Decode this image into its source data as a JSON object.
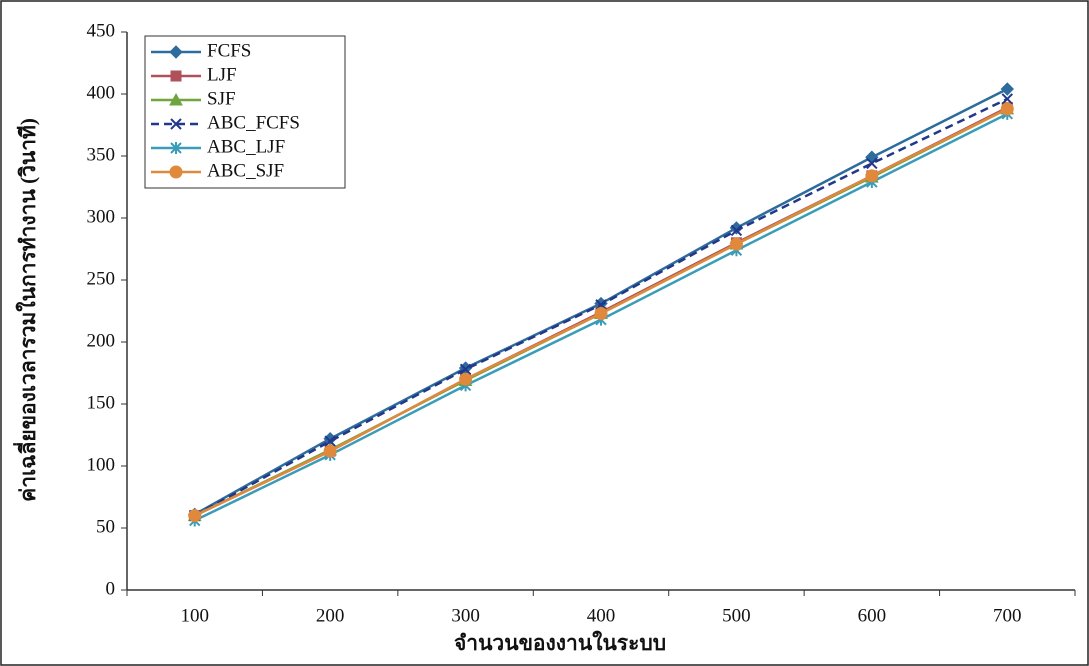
{
  "chart_data": {
    "type": "line",
    "x_label": "จำนวนของงานในระบบ",
    "y_label": "ค่าเฉลี่ยของเวลารวมในการทำงาน (วินาที)",
    "categories": [
      100,
      200,
      300,
      400,
      500,
      600,
      700
    ],
    "ylim": [
      0,
      450
    ],
    "yticks": [
      0,
      50,
      100,
      150,
      200,
      250,
      300,
      350,
      400,
      450
    ],
    "legend": "top-left",
    "series": [
      {
        "name": "FCFS",
        "color": "#2d6c9c",
        "marker": "diamond",
        "values": [
          61,
          122,
          179,
          231,
          292,
          349,
          404
        ]
      },
      {
        "name": "LJF",
        "color": "#b0505a",
        "marker": "square",
        "values": [
          60,
          112,
          170,
          224,
          280,
          334,
          389
        ]
      },
      {
        "name": "SJF",
        "color": "#6fa43f",
        "marker": "triangle",
        "values": [
          60,
          113,
          169,
          223,
          279,
          333,
          388
        ]
      },
      {
        "name": "ABC_FCFS",
        "color": "#22388a",
        "marker": "x",
        "dash": true,
        "values": [
          60,
          120,
          178,
          230,
          290,
          344,
          396
        ]
      },
      {
        "name": "ABC_LJF",
        "color": "#3a9cb8",
        "marker": "star",
        "values": [
          56,
          109,
          165,
          218,
          274,
          329,
          384
        ]
      },
      {
        "name": "ABC_SJF",
        "color": "#e0893c",
        "marker": "circle",
        "values": [
          60,
          112,
          170,
          223,
          279,
          334,
          388
        ]
      }
    ]
  }
}
